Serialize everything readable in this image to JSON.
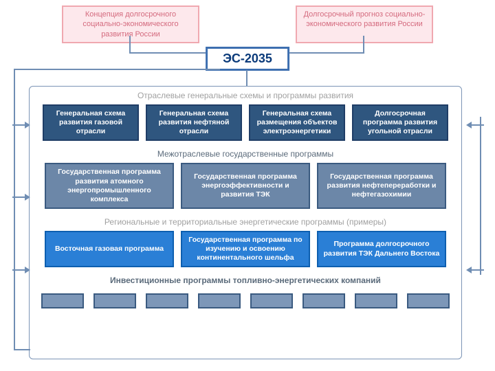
{
  "colors": {
    "pink_border": "#f0a8b0",
    "pink_bg": "#fde8ec",
    "pink_text": "#d46a7e",
    "accent_border": "#3d6fb0",
    "accent_bg": "#ffffff",
    "accent_text": "#0a3a7a",
    "row1_border": "#1f3d66",
    "row1_bg": "#2f567f",
    "row1_text": "#ffffff",
    "row2_border": "#3a5a80",
    "row2_bg": "#6c87a8",
    "row2_text": "#ffffff",
    "row3_border": "#0d5fb0",
    "row3_bg": "#2a7fd6",
    "row3_text": "#ffffff",
    "small_border": "#3a5a80",
    "small_bg": "#7d97b8",
    "title_gray": "#a0a0a0",
    "title_dark": "#5a6a7a",
    "line": "#6f8db3"
  },
  "top": {
    "left": "Концепция долгосрочного социально-экономического развития России",
    "right": "Долгосрочный прогноз социально-экономического развития России"
  },
  "center": "ЭС-2035",
  "sections": {
    "s1_title": "Отраслевые генеральные схемы и программы развития",
    "s1": [
      "Генеральная схема развития газовой отрасли",
      "Генеральная схема развития нефтяной отрасли",
      "Генеральная схема размещения объектов электроэнергетики",
      "Долгосрочная программа развития угольной отрасли"
    ],
    "s2_title": "Межотраслевые государственные программы",
    "s2": [
      "Государственная программа развития атомного энергопромышленного комплекса",
      "Государственная программа энергоэффективности и развития ТЭК",
      "Государственная программа развития нефтепереработки и нефтегазохимии"
    ],
    "s3_title": "Региональные и территориальные энергетические программы (примеры)",
    "s3": [
      "Восточная газовая программа",
      "Государственная программа по изучению и освоению континентального шельфа",
      "Программа долгосрочного развития ТЭК Дальнего Востока"
    ],
    "s4_title": "Инвестиционные программы топливно-энергетических компаний",
    "small_count": 8
  }
}
